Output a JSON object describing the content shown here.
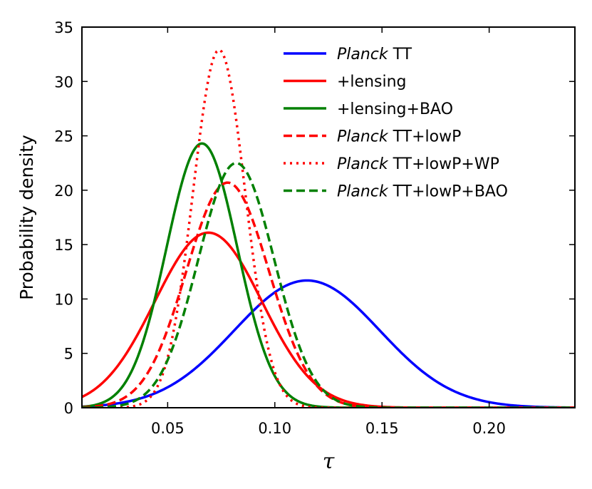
{
  "chart_data": {
    "type": "line",
    "xlabel": "τ",
    "ylabel": "Probability density",
    "xlim": [
      0.01,
      0.24
    ],
    "ylim": [
      0,
      35
    ],
    "x_ticks": [
      0.05,
      0.1,
      0.15,
      0.2
    ],
    "x_tick_labels": [
      "0.05",
      "0.10",
      "0.15",
      "0.20"
    ],
    "y_ticks": [
      0,
      5,
      10,
      15,
      20,
      25,
      30,
      35
    ],
    "y_tick_labels": [
      "0",
      "5",
      "10",
      "15",
      "20",
      "25",
      "30",
      "35"
    ],
    "legend_position": "top-right",
    "series": [
      {
        "id": "planck-tt",
        "label_italic": "Planck",
        "label_rest": " TT",
        "color": "#0000ff",
        "style": "solid",
        "mean": 0.115,
        "sigma": 0.034,
        "peak": 11.7
      },
      {
        "id": "lensing",
        "label_italic": "",
        "label_rest": "+lensing",
        "color": "#ff0000",
        "style": "solid",
        "mean": 0.069,
        "sigma": 0.025,
        "peak": 16.1
      },
      {
        "id": "lensing-bao",
        "label_italic": "",
        "label_rest": "+lensing+BAO",
        "color": "#008000",
        "style": "solid",
        "mean": 0.066,
        "sigma": 0.0165,
        "peak": 24.3
      },
      {
        "id": "planck-tt-lowp",
        "label_italic": "Planck",
        "label_rest": " TT+lowP",
        "color": "#ff0000",
        "style": "dashed",
        "mean": 0.078,
        "sigma": 0.0193,
        "peak": 20.7
      },
      {
        "id": "planck-tt-lowp-wp",
        "label_italic": "Planck",
        "label_rest": " TT+lowP+WP",
        "color": "#ff0000",
        "style": "dotted",
        "mean": 0.074,
        "sigma": 0.0121,
        "peak": 32.9
      },
      {
        "id": "planck-tt-lowp-bao",
        "label_italic": "Planck",
        "label_rest": " TT+lowP+BAO",
        "color": "#008000",
        "style": "dashed",
        "mean": 0.082,
        "sigma": 0.0177,
        "peak": 22.5
      }
    ]
  }
}
